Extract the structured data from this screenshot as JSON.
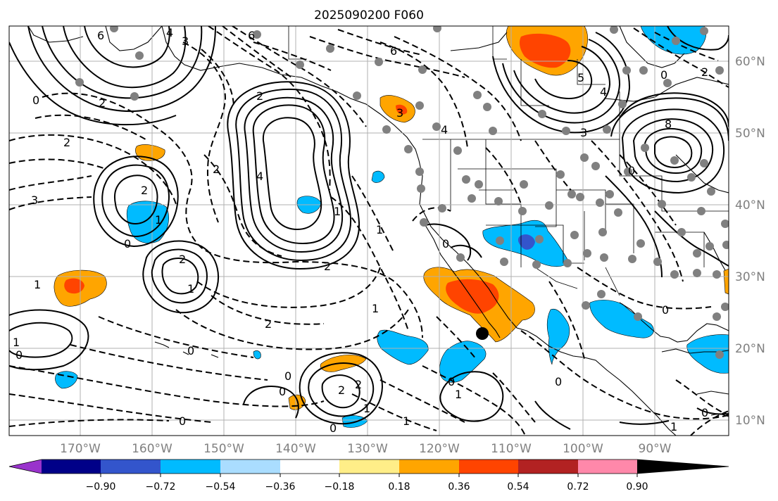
{
  "title": "2025090200 F060",
  "map": {
    "lon_labels": [
      "170°W",
      "160°W",
      "150°W",
      "140°W",
      "130°W",
      "120°W",
      "110°W",
      "100°W",
      "90°W"
    ],
    "lat_labels": [
      "60°N",
      "50°N",
      "40°N",
      "30°N",
      "20°N",
      "10°N"
    ],
    "contour_labels": [
      "6",
      "4",
      "6",
      "3",
      "0",
      "2",
      "2",
      "3",
      "4",
      "6",
      "2",
      "3",
      "5",
      "0",
      "4",
      "8",
      "2",
      "0",
      "4",
      "3",
      "2",
      "2",
      "1",
      "2",
      "1",
      "1",
      "2",
      "1",
      "1",
      "0",
      "0",
      "0",
      "2",
      "0",
      "0",
      "0",
      "0",
      "1",
      "1",
      "0",
      "2",
      "2",
      "1",
      "0",
      "0",
      "1",
      "0",
      "1",
      "1",
      "0"
    ]
  },
  "colorbar": {
    "ticks": [
      "−0.90",
      "−0.72",
      "−0.54",
      "−0.36",
      "−0.18",
      "0.18",
      "0.36",
      "0.54",
      "0.72",
      "0.90"
    ],
    "colors": [
      "#9933cc",
      "#000088",
      "#3355cc",
      "#00bbff",
      "#aaddff",
      "#ffffff",
      "#ffee88",
      "#ffa500",
      "#ff4400",
      "#b22222",
      "#ff88aa"
    ]
  }
}
